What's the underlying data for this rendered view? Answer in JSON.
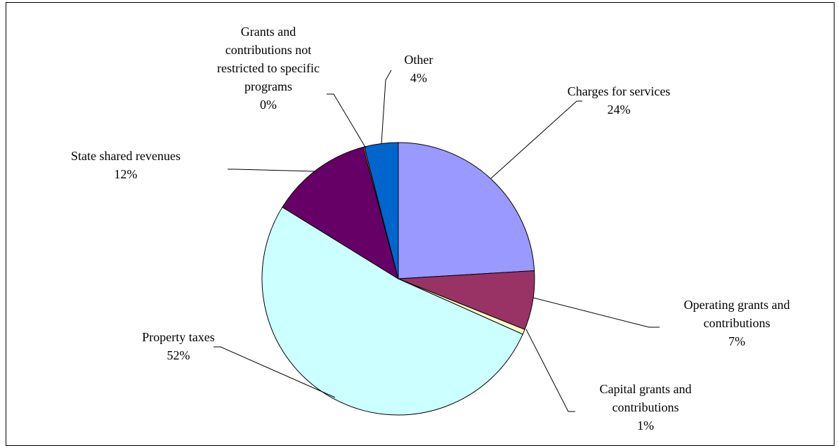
{
  "chart_data": {
    "type": "pie",
    "title": "",
    "slices": [
      {
        "name": "Charges for services",
        "percent_label": "24%",
        "value": 24,
        "color": "#9999ff"
      },
      {
        "name": "Operating grants and contributions",
        "percent_label": "7%",
        "value": 7,
        "color": "#993366"
      },
      {
        "name": "Capital grants and contributions",
        "percent_label": "1%",
        "value": 0.6,
        "color": "#ffffcc"
      },
      {
        "name": "Property taxes",
        "percent_label": "52%",
        "value": 52,
        "color": "#ccffff"
      },
      {
        "name": "State shared revenues",
        "percent_label": "12%",
        "value": 12,
        "color": "#660066"
      },
      {
        "name": "Grants and contributions not restricted to specific programs",
        "percent_label": "0%",
        "value": 0.15,
        "color": "#ff8080"
      },
      {
        "name": "Other",
        "percent_label": "4%",
        "value": 4,
        "color": "#0066cc"
      }
    ],
    "legend": "none",
    "labels": "outside-with-leader-lines"
  }
}
